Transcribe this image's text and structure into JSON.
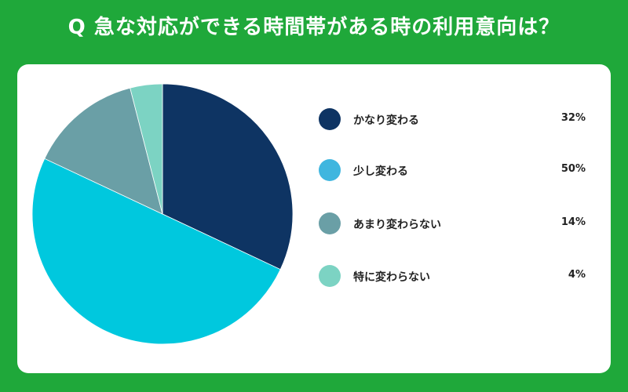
{
  "chart_data": {
    "type": "pie",
    "title": "Q 急な対応ができる時間帯がある時の利用意向は？",
    "categories": [
      "かなり変わる",
      "少し変わる",
      "あまり変わらない",
      "特に変わらない"
    ],
    "values": [
      32,
      50,
      14,
      4
    ],
    "value_labels": [
      "32%",
      "50%",
      "14%",
      "4%"
    ],
    "colors": [
      "#0e3463",
      "#00c8de",
      "#6a9fa6",
      "#7cd3c3"
    ],
    "legend_dot_colors": [
      "#0e3463",
      "#3fb6df",
      "#6a9fa6",
      "#7cd3c3"
    ],
    "legend_position": "right"
  }
}
